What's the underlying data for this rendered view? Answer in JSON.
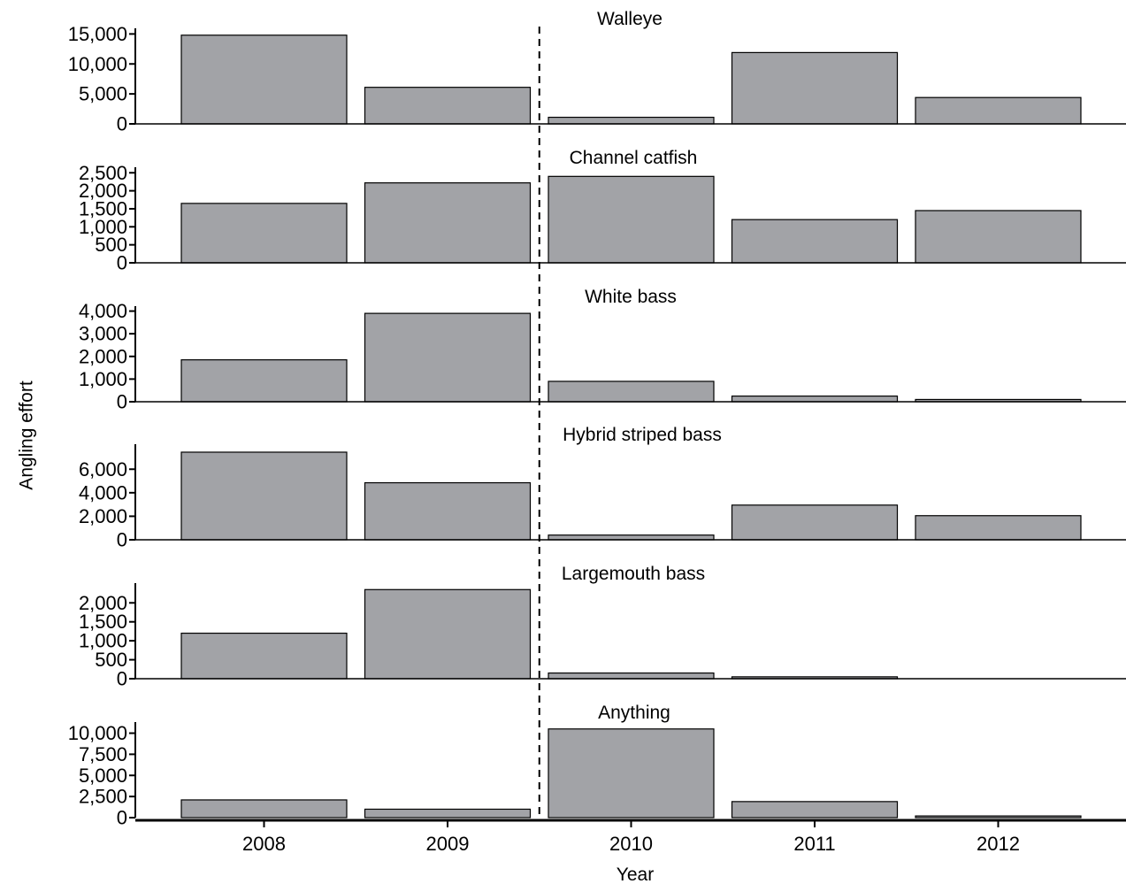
{
  "chart_data": {
    "type": "bar",
    "xlabel": "Year",
    "ylabel": "Angling effort",
    "categories": [
      "2008",
      "2009",
      "2010",
      "2011",
      "2012"
    ],
    "reference_line": {
      "style": "dashed",
      "between": [
        "2009",
        "2010"
      ]
    },
    "bar_color": "#a2a3a7",
    "bar_edge_color": "#000000",
    "grid": false,
    "legend": "none",
    "panels": [
      {
        "title": "Walleye",
        "values": [
          14800,
          6100,
          1100,
          11900,
          4400
        ],
        "ylim": [
          0,
          15500
        ],
        "yticks": [
          0,
          5000,
          10000,
          15000
        ],
        "ytick_labels": [
          "0",
          "5,000",
          "10,000",
          "15,000"
        ]
      },
      {
        "title": "Channel catfish",
        "values": [
          1650,
          2220,
          2400,
          1200,
          1450
        ],
        "ylim": [
          0,
          2580
        ],
        "yticks": [
          0,
          500,
          1000,
          1500,
          2000,
          2500
        ],
        "ytick_labels": [
          "0",
          "500",
          "1,000",
          "1,500",
          "2,000",
          "2,500"
        ]
      },
      {
        "title": "White bass",
        "values": [
          1850,
          3900,
          900,
          250,
          100
        ],
        "ylim": [
          0,
          4100
        ],
        "yticks": [
          0,
          1000,
          2000,
          3000,
          4000
        ],
        "ytick_labels": [
          "0",
          "1,000",
          "2,000",
          "3,000",
          "4,000"
        ]
      },
      {
        "title": "Hybrid striped bass",
        "values": [
          7450,
          4850,
          400,
          2950,
          2050
        ],
        "ylim": [
          0,
          7900
        ],
        "yticks": [
          0,
          2000,
          4000,
          6000
        ],
        "ytick_labels": [
          "0",
          "2,000",
          "4,000",
          "6,000"
        ]
      },
      {
        "title": "Largemouth bass",
        "values": [
          1200,
          2350,
          150,
          50,
          0
        ],
        "ylim": [
          0,
          2450
        ],
        "yticks": [
          0,
          500,
          1000,
          1500,
          2000
        ],
        "ytick_labels": [
          "0",
          "500",
          "1,000",
          "1,500",
          "2,000"
        ]
      },
      {
        "title": "Anything",
        "values": [
          2100,
          1000,
          10500,
          1900,
          200
        ],
        "ylim": [
          0,
          11000
        ],
        "yticks": [
          0,
          2500,
          5000,
          7500,
          10000
        ],
        "ytick_labels": [
          "0",
          "2,500",
          "5,000",
          "7,500",
          "10,000"
        ]
      }
    ]
  }
}
